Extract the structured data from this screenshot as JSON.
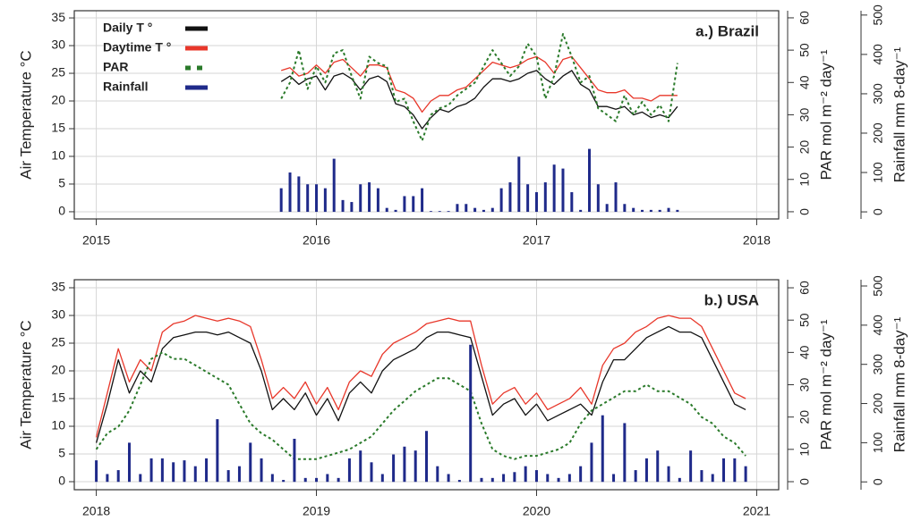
{
  "chart_data": [
    {
      "type": "line",
      "title": "a.) Brazil",
      "ylabel": "Air Temperature °C",
      "y2label": "PAR mol m⁻² day⁻¹",
      "y3label": "Rainfall mm 8-day⁻¹",
      "xlim": [
        2014.9,
        2018.1
      ],
      "xticks": [
        2015,
        2016,
        2017,
        2018
      ],
      "ylim": [
        -1.3,
        36.3
      ],
      "yticks": [
        0,
        5,
        10,
        15,
        20,
        25,
        30,
        35
      ],
      "y2lim": [
        -2.23,
        62.2
      ],
      "y2ticks": [
        0,
        10,
        20,
        30,
        40,
        50,
        60
      ],
      "y3lim": [
        -18,
        511
      ],
      "y3ticks": [
        0,
        100,
        200,
        300,
        400,
        500
      ],
      "grid": true,
      "legend": "upper left",
      "x": [
        2015.84,
        2015.88,
        2015.92,
        2015.96,
        2016.0,
        2016.04,
        2016.08,
        2016.12,
        2016.16,
        2016.2,
        2016.24,
        2016.28,
        2016.32,
        2016.36,
        2016.4,
        2016.44,
        2016.48,
        2016.52,
        2016.56,
        2016.6,
        2016.64,
        2016.68,
        2016.72,
        2016.76,
        2016.8,
        2016.84,
        2016.88,
        2016.92,
        2016.96,
        2017.0,
        2017.04,
        2017.08,
        2017.12,
        2017.16,
        2017.2,
        2017.24,
        2017.28,
        2017.32,
        2017.36,
        2017.4,
        2017.44,
        2017.48,
        2017.52,
        2017.56,
        2017.6,
        2017.64
      ],
      "series": [
        {
          "name": "Daily T °",
          "type": "line",
          "color": "#111111",
          "axis": "y",
          "values": [
            23.5,
            24.5,
            23,
            24,
            24.5,
            22,
            24.5,
            25,
            24,
            22,
            24,
            24.5,
            23.5,
            19.5,
            19,
            17.5,
            15,
            17,
            18.5,
            18,
            19,
            19.5,
            20.5,
            22.5,
            24,
            24,
            23.5,
            24,
            25,
            25.5,
            24,
            23,
            24.5,
            25.5,
            23,
            22,
            19,
            19,
            18.5,
            19,
            17.5,
            18,
            17,
            17.5,
            17,
            19
          ]
        },
        {
          "name": "Daytime T °",
          "type": "line",
          "color": "#e8372a",
          "axis": "y",
          "values": [
            25.5,
            26,
            24.5,
            25,
            26.5,
            25,
            27,
            27.5,
            26,
            24.5,
            26.5,
            26.5,
            26,
            22,
            21.5,
            20.5,
            18,
            20,
            21,
            21,
            22,
            22.5,
            24,
            25.5,
            27,
            26.5,
            26,
            26.5,
            27.5,
            28,
            27,
            25,
            27.5,
            28,
            26,
            24,
            22,
            21.5,
            21.5,
            22,
            20.5,
            20.5,
            20,
            21,
            21,
            21
          ]
        },
        {
          "name": "PAR",
          "type": "dotted",
          "color": "#2a7a2a",
          "axis": "y2",
          "values": [
            35,
            40,
            50,
            38,
            45,
            40,
            49,
            50,
            42,
            35,
            48,
            46,
            45,
            34,
            35,
            28,
            22,
            30,
            32,
            33,
            36,
            38,
            40,
            45,
            50,
            46,
            42,
            45,
            52,
            48,
            35,
            42,
            55,
            48,
            40,
            42,
            32,
            30,
            28,
            36,
            30,
            34,
            30,
            33,
            28,
            46
          ]
        },
        {
          "name": "Rainfall",
          "type": "bar",
          "color": "#1f2a8a",
          "axis": "y3",
          "values": [
            60,
            100,
            90,
            70,
            70,
            60,
            135,
            30,
            25,
            70,
            75,
            60,
            10,
            5,
            40,
            40,
            60,
            2,
            2,
            2,
            20,
            20,
            10,
            5,
            10,
            60,
            75,
            140,
            70,
            50,
            75,
            120,
            110,
            50,
            5,
            160,
            70,
            20,
            75,
            20,
            10,
            5,
            5,
            5,
            10,
            5
          ]
        }
      ]
    },
    {
      "type": "line",
      "title": "b.) USA",
      "ylabel": "Air Temperature °C",
      "y2label": "PAR mol m⁻² day⁻¹",
      "y3label": "Rainfall mm 8-day⁻¹",
      "xlim": [
        2017.9,
        2021.1
      ],
      "xticks": [
        2018,
        2019,
        2020,
        2021
      ],
      "ylim": [
        -1.45,
        36.45
      ],
      "yticks": [
        0,
        5,
        10,
        15,
        20,
        25,
        30,
        35
      ],
      "y2lim": [
        -2.49,
        62.5
      ],
      "y2ticks": [
        0,
        10,
        20,
        30,
        40,
        50,
        60
      ],
      "y3lim": [
        -20,
        516
      ],
      "y3ticks": [
        0,
        100,
        200,
        300,
        400,
        500
      ],
      "grid": true,
      "x": [
        2018.0,
        2018.05,
        2018.1,
        2018.15,
        2018.2,
        2018.25,
        2018.3,
        2018.35,
        2018.4,
        2018.45,
        2018.5,
        2018.55,
        2018.6,
        2018.65,
        2018.7,
        2018.75,
        2018.8,
        2018.85,
        2018.9,
        2018.95,
        2019.0,
        2019.05,
        2019.1,
        2019.15,
        2019.2,
        2019.25,
        2019.3,
        2019.35,
        2019.4,
        2019.45,
        2019.5,
        2019.55,
        2019.6,
        2019.65,
        2019.7,
        2019.75,
        2019.8,
        2019.85,
        2019.9,
        2019.95,
        2020.0,
        2020.05,
        2020.1,
        2020.15,
        2020.2,
        2020.25,
        2020.3,
        2020.35,
        2020.4,
        2020.45,
        2020.5,
        2020.55,
        2020.6,
        2020.65,
        2020.7,
        2020.75,
        2020.8,
        2020.85,
        2020.9,
        2020.95
      ],
      "series": [
        {
          "type": "line",
          "color": "#111111",
          "axis": "y",
          "values": [
            7,
            14,
            22,
            16,
            20,
            18,
            24,
            26,
            26.5,
            27,
            27,
            26.5,
            27,
            26,
            25,
            20,
            13,
            15,
            13,
            16,
            12,
            15,
            11,
            16,
            18,
            16,
            20,
            22,
            23,
            24,
            26,
            27,
            27,
            26.5,
            26,
            19,
            12,
            14,
            15,
            12,
            14,
            11,
            12,
            13,
            14,
            12,
            18,
            22,
            22,
            24,
            26,
            27,
            28,
            27,
            27,
            26,
            22,
            18,
            14,
            13
          ]
        },
        {
          "type": "line",
          "color": "#e8372a",
          "axis": "y",
          "values": [
            8,
            16,
            24,
            18,
            22,
            20,
            27,
            28.5,
            29,
            30,
            29.5,
            29,
            29.5,
            29,
            28,
            22,
            15,
            17,
            15,
            18,
            14,
            17,
            13,
            18,
            20,
            19,
            23,
            25,
            26,
            27,
            28.5,
            29,
            29.5,
            29,
            29,
            21,
            14,
            16,
            17,
            14,
            16,
            13,
            14,
            15,
            17,
            14,
            21,
            24,
            25,
            27,
            28,
            29.5,
            30,
            29.5,
            29.5,
            28,
            24,
            20,
            16,
            15
          ]
        },
        {
          "type": "dotted",
          "color": "#2a7a2a",
          "axis": "y2",
          "values": [
            10,
            15,
            17,
            22,
            30,
            38,
            40,
            38,
            38,
            36,
            34,
            32,
            30,
            24,
            18,
            15,
            13,
            10,
            7,
            7,
            7,
            8,
            9,
            10,
            12,
            14,
            18,
            22,
            25,
            28,
            30,
            32,
            32,
            30,
            28,
            18,
            10,
            8,
            7,
            8,
            8,
            9,
            10,
            12,
            18,
            22,
            24,
            26,
            28,
            28,
            30,
            28,
            28,
            26,
            24,
            20,
            18,
            14,
            12,
            8
          ]
        },
        {
          "type": "bar",
          "color": "#1f2a8a",
          "axis": "y3",
          "values": [
            55,
            20,
            30,
            100,
            20,
            60,
            60,
            50,
            55,
            40,
            60,
            160,
            30,
            40,
            100,
            60,
            20,
            5,
            110,
            10,
            10,
            20,
            10,
            60,
            80,
            50,
            20,
            70,
            90,
            80,
            130,
            40,
            20,
            5,
            350,
            10,
            10,
            20,
            25,
            40,
            30,
            20,
            10,
            20,
            40,
            100,
            170,
            20,
            150,
            30,
            60,
            80,
            40,
            10,
            80,
            30,
            20,
            60,
            60,
            40
          ]
        }
      ]
    }
  ]
}
